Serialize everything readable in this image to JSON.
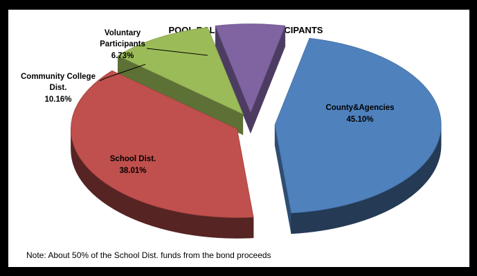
{
  "chart_data": {
    "type": "pie",
    "title": "POOL BALANCE BY PARTICIPANTS",
    "slices": [
      {
        "name": "County&Agencies",
        "pct_label": "45.10%",
        "value": 45.1,
        "color": "#4f81bd"
      },
      {
        "name": "School Dist.",
        "pct_label": "38.01%",
        "value": 38.01,
        "color": "#c0504d"
      },
      {
        "name": "Community College Dist.",
        "label_lines": [
          "Community College",
          "Dist."
        ],
        "pct_label": "10.16%",
        "value": 10.16,
        "color": "#9bbb59"
      },
      {
        "name": "Voluntary Participants",
        "label_lines": [
          "Voluntary",
          "Participants"
        ],
        "pct_label": "6.73%",
        "value": 6.73,
        "color": "#8064a2"
      }
    ],
    "legend": "none",
    "note": "Note: About 50% of the School Dist. funds from the bond proceeds"
  }
}
